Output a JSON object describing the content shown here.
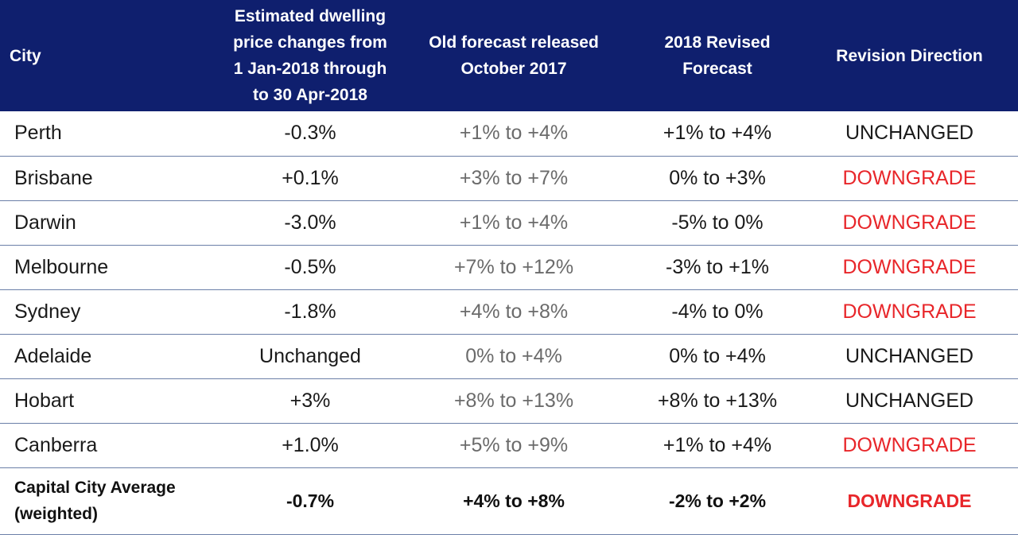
{
  "table": {
    "headers": {
      "city": "City",
      "estimated": "Estimated dwelling price changes from 1 Jan-2018 through to 30 Apr-2018",
      "old_forecast": "Old forecast released October 2017",
      "revised": "2018 Revised Forecast",
      "direction": "Revision Direction"
    },
    "rows": [
      {
        "city": "Perth",
        "estimated": "-0.3%",
        "old_forecast": "+1% to +4%",
        "revised": "+1% to +4%",
        "direction": "UNCHANGED"
      },
      {
        "city": "Brisbane",
        "estimated": "+0.1%",
        "old_forecast": "+3% to +7%",
        "revised": "0% to +3%",
        "direction": "DOWNGRADE"
      },
      {
        "city": "Darwin",
        "estimated": "-3.0%",
        "old_forecast": "+1% to +4%",
        "revised": "-5% to 0%",
        "direction": "DOWNGRADE"
      },
      {
        "city": "Melbourne",
        "estimated": "-0.5%",
        "old_forecast": "+7% to +12%",
        "revised": "-3% to +1%",
        "direction": "DOWNGRADE"
      },
      {
        "city": "Sydney",
        "estimated": "-1.8%",
        "old_forecast": "+4% to +8%",
        "revised": "-4% to 0%",
        "direction": "DOWNGRADE"
      },
      {
        "city": "Adelaide",
        "estimated": "Unchanged",
        "old_forecast": "0% to +4%",
        "revised": "0% to +4%",
        "direction": "UNCHANGED"
      },
      {
        "city": "Hobart",
        "estimated": "+3%",
        "old_forecast": "+8% to +13%",
        "revised": "+8% to +13%",
        "direction": "UNCHANGED"
      },
      {
        "city": "Canberra",
        "estimated": "+1.0%",
        "old_forecast": "+5% to +9%",
        "revised": "+1% to +4%",
        "direction": "DOWNGRADE"
      }
    ],
    "average": {
      "city": "Capital City Average (weighted)",
      "estimated": "-0.7%",
      "old_forecast": "+4% to +8%",
      "revised": "-2% to +2%",
      "direction": "DOWNGRADE"
    }
  },
  "colors": {
    "header_background": "#0f1f6e",
    "header_text": "#ffffff",
    "downgrade": "#e8262a",
    "old_forecast_text": "#6b6b6b",
    "row_divider": "#6b7fa8"
  }
}
